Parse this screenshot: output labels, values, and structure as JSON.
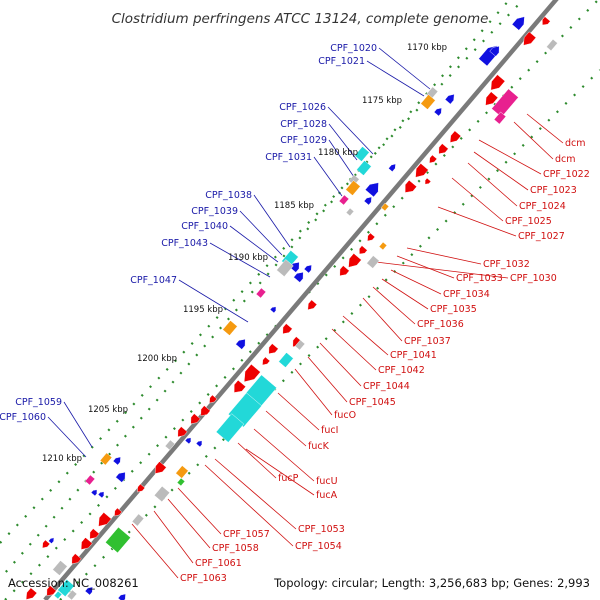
{
  "title": "Clostridium perfringens ATCC 13124, complete genome",
  "footer": {
    "accession": "Accession: NC_008261",
    "summary": "Topology: circular; Length: 3,256,683 bp; Genes: 2,993"
  },
  "colors": {
    "backbone": "#7a7a7a",
    "forward_gene": "#1010e0",
    "reverse_gene": "#ee0000",
    "cyan_gene": "#22d8d8",
    "orange_gene": "#f59a10",
    "gray_gene": "#bbbbbb",
    "magenta_gene": "#e8208f",
    "green_gene": "#30c030",
    "forward_label": "#1a1aa8",
    "reverse_label": "#d01010",
    "tick_dot": "#2e8b2e"
  },
  "kbp_ticks": [
    "1170 kbp",
    "1175 kbp",
    "1180 kbp",
    "1185 kbp",
    "1190 kbp",
    "1195 kbp",
    "1200 kbp",
    "1205 kbp",
    "1210 kbp"
  ],
  "forward_labels": [
    "CPF_1020",
    "CPF_1021",
    "CPF_1026",
    "CPF_1028",
    "CPF_1029",
    "CPF_1031",
    "CPF_1038",
    "CPF_1039",
    "CPF_1040",
    "CPF_1043",
    "CPF_1047",
    "CPF_1059",
    "CPF_1060"
  ],
  "reverse_labels": [
    "dcm",
    "dcm",
    "CPF_1022",
    "CPF_1023",
    "CPF_1024",
    "CPF_1025",
    "CPF_1027",
    "CPF_1032",
    "CPF_1033",
    "CPF_1030",
    "CPF_1034",
    "CPF_1035",
    "CPF_1036",
    "CPF_1037",
    "CPF_1041",
    "CPF_1042",
    "CPF_1044",
    "CPF_1045",
    "fucO",
    "fucI",
    "fucK",
    "fucU",
    "fucP",
    "fucA",
    "CPF_1053",
    "CPF_1054",
    "CPF_1057",
    "CPF_1058",
    "CPF_1061",
    "CPF_1063"
  ]
}
